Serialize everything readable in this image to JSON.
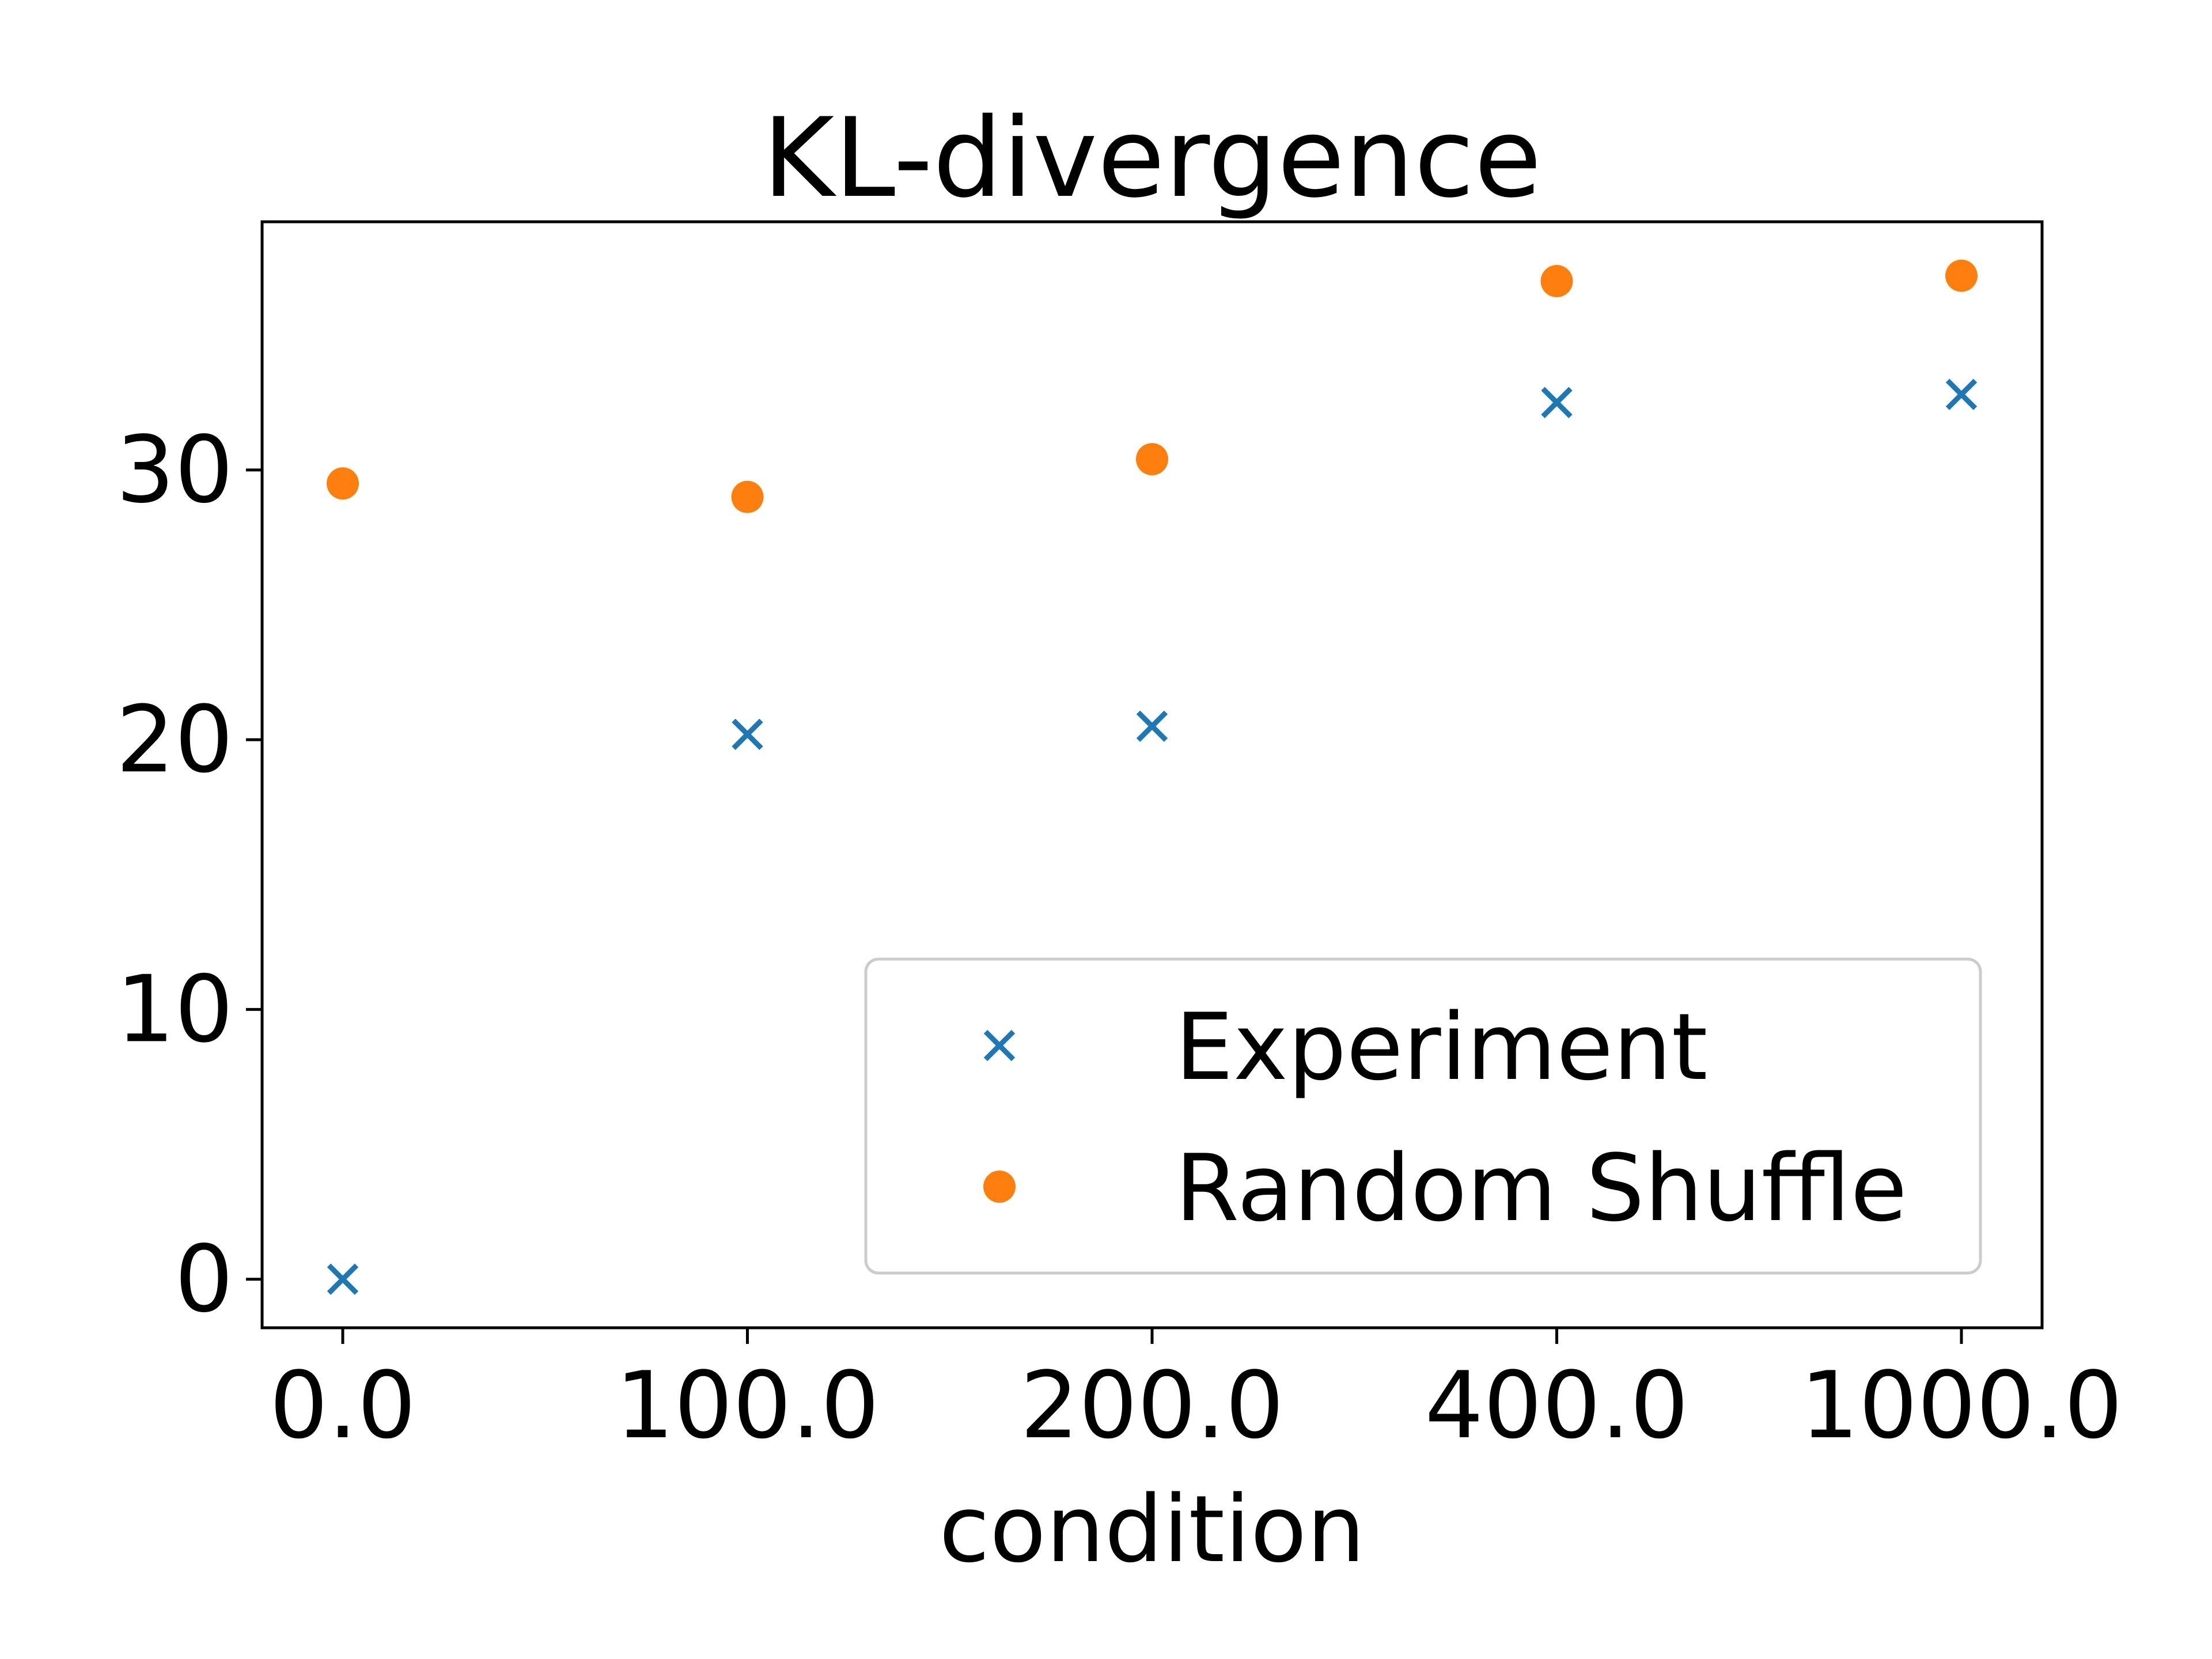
{
  "chart_data": {
    "type": "scatter",
    "title": "KL-divergence",
    "xlabel": "condition",
    "ylabel": "",
    "categories": [
      "0.0",
      "100.0",
      "200.0",
      "400.0",
      "1000.0"
    ],
    "ylim": [
      -1.8,
      39.2
    ],
    "yticks": [
      0,
      10,
      20,
      30
    ],
    "grid": false,
    "legend_position": "lower-right",
    "series": [
      {
        "name": "Experiment",
        "marker": "x",
        "color": "#1f77b4",
        "values": [
          0.0,
          20.2,
          20.5,
          32.5,
          32.8
        ]
      },
      {
        "name": "Random Shuffle",
        "marker": "circle",
        "color": "#ff7f0e",
        "values": [
          29.5,
          29.0,
          30.4,
          37.0,
          37.2
        ]
      }
    ]
  }
}
